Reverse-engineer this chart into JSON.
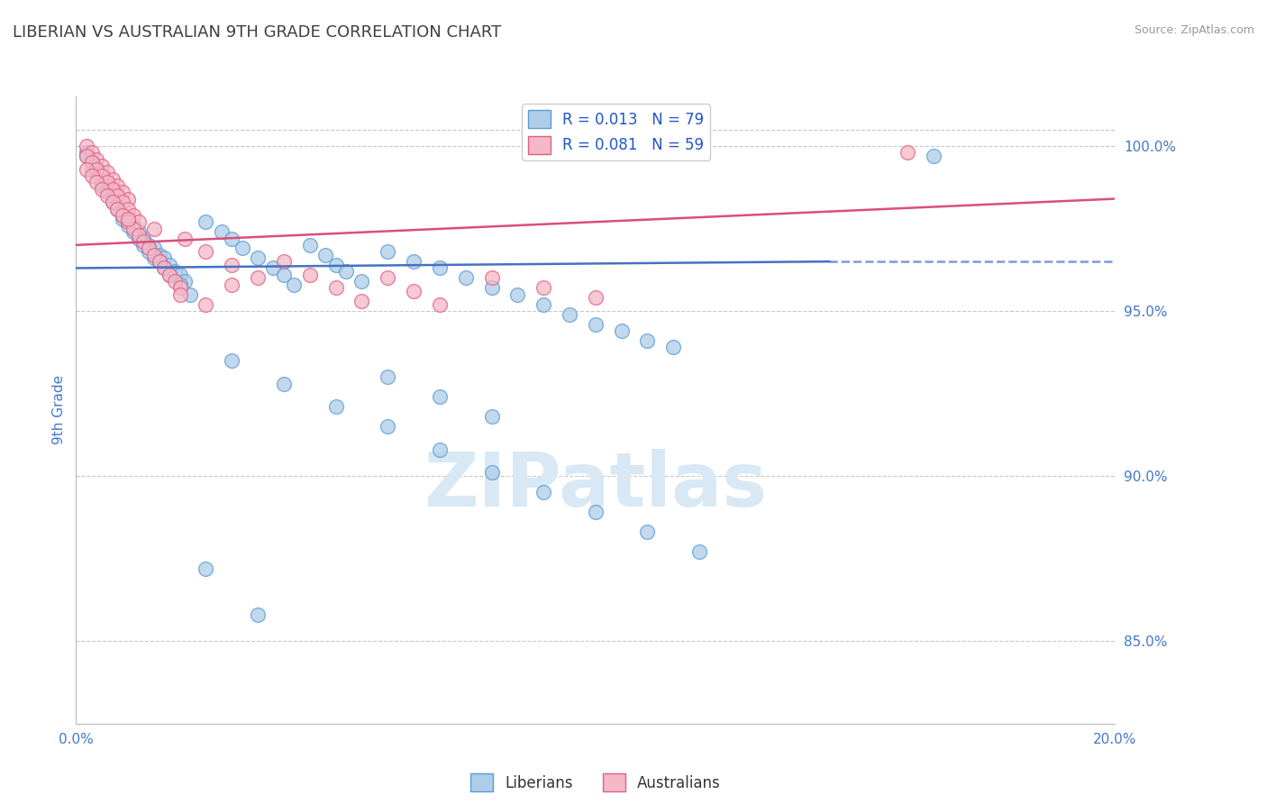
{
  "title": "LIBERIAN VS AUSTRALIAN 9TH GRADE CORRELATION CHART",
  "source": "Source: ZipAtlas.com",
  "ylabel": "9th Grade",
  "xlim": [
    0.0,
    0.2
  ],
  "ylim": [
    0.825,
    1.015
  ],
  "xticks": [
    0.0,
    0.2
  ],
  "xticklabels": [
    "0.0%",
    "20.0%"
  ],
  "yticks": [
    0.85,
    0.9,
    0.95,
    1.0
  ],
  "yticklabels": [
    "85.0%",
    "90.0%",
    "95.0%",
    "100.0%"
  ],
  "blue_color": "#aecde8",
  "blue_edge_color": "#5b9bd5",
  "pink_color": "#f4b8c8",
  "pink_edge_color": "#e06080",
  "blue_line_color": "#4472c4",
  "pink_line_color": "#d94f7a",
  "R_blue": 0.013,
  "N_blue": 79,
  "R_pink": 0.081,
  "N_pink": 59,
  "legend_text_color": "#2255cc",
  "title_color": "#404040",
  "axis_color": "#4477cc",
  "grid_color": "#c8c8c8",
  "watermark": "ZIPatlas",
  "watermark_color": "#d8e8f4",
  "blue_scatter": [
    [
      0.002,
      0.998
    ],
    [
      0.003,
      0.995
    ],
    [
      0.004,
      0.993
    ],
    [
      0.005,
      0.99
    ],
    [
      0.006,
      0.988
    ],
    [
      0.007,
      0.985
    ],
    [
      0.008,
      0.982
    ],
    [
      0.009,
      0.979
    ],
    [
      0.01,
      0.978
    ],
    [
      0.011,
      0.976
    ],
    [
      0.012,
      0.974
    ],
    [
      0.013,
      0.972
    ],
    [
      0.014,
      0.97
    ],
    [
      0.015,
      0.969
    ],
    [
      0.016,
      0.967
    ],
    [
      0.017,
      0.966
    ],
    [
      0.018,
      0.964
    ],
    [
      0.019,
      0.962
    ],
    [
      0.02,
      0.961
    ],
    [
      0.021,
      0.959
    ],
    [
      0.003,
      0.993
    ],
    [
      0.005,
      0.988
    ],
    [
      0.007,
      0.983
    ],
    [
      0.009,
      0.978
    ],
    [
      0.011,
      0.974
    ],
    [
      0.013,
      0.97
    ],
    [
      0.015,
      0.966
    ],
    [
      0.017,
      0.963
    ],
    [
      0.002,
      0.997
    ],
    [
      0.004,
      0.992
    ],
    [
      0.006,
      0.986
    ],
    [
      0.008,
      0.981
    ],
    [
      0.01,
      0.976
    ],
    [
      0.012,
      0.972
    ],
    [
      0.014,
      0.968
    ],
    [
      0.016,
      0.965
    ],
    [
      0.018,
      0.961
    ],
    [
      0.02,
      0.958
    ],
    [
      0.022,
      0.955
    ],
    [
      0.025,
      0.977
    ],
    [
      0.028,
      0.974
    ],
    [
      0.03,
      0.972
    ],
    [
      0.032,
      0.969
    ],
    [
      0.035,
      0.966
    ],
    [
      0.038,
      0.963
    ],
    [
      0.04,
      0.961
    ],
    [
      0.042,
      0.958
    ],
    [
      0.045,
      0.97
    ],
    [
      0.048,
      0.967
    ],
    [
      0.05,
      0.964
    ],
    [
      0.052,
      0.962
    ],
    [
      0.055,
      0.959
    ],
    [
      0.06,
      0.968
    ],
    [
      0.065,
      0.965
    ],
    [
      0.07,
      0.963
    ],
    [
      0.075,
      0.96
    ],
    [
      0.08,
      0.957
    ],
    [
      0.085,
      0.955
    ],
    [
      0.09,
      0.952
    ],
    [
      0.095,
      0.949
    ],
    [
      0.1,
      0.946
    ],
    [
      0.105,
      0.944
    ],
    [
      0.11,
      0.941
    ],
    [
      0.115,
      0.939
    ],
    [
      0.03,
      0.935
    ],
    [
      0.04,
      0.928
    ],
    [
      0.05,
      0.921
    ],
    [
      0.06,
      0.915
    ],
    [
      0.07,
      0.908
    ],
    [
      0.08,
      0.901
    ],
    [
      0.09,
      0.895
    ],
    [
      0.1,
      0.889
    ],
    [
      0.11,
      0.883
    ],
    [
      0.12,
      0.877
    ],
    [
      0.06,
      0.93
    ],
    [
      0.07,
      0.924
    ],
    [
      0.08,
      0.918
    ],
    [
      0.025,
      0.872
    ],
    [
      0.035,
      0.858
    ],
    [
      0.165,
      0.997
    ]
  ],
  "pink_scatter": [
    [
      0.002,
      1.0
    ],
    [
      0.003,
      0.998
    ],
    [
      0.004,
      0.996
    ],
    [
      0.005,
      0.994
    ],
    [
      0.006,
      0.992
    ],
    [
      0.007,
      0.99
    ],
    [
      0.008,
      0.988
    ],
    [
      0.009,
      0.986
    ],
    [
      0.01,
      0.984
    ],
    [
      0.002,
      0.997
    ],
    [
      0.003,
      0.995
    ],
    [
      0.004,
      0.993
    ],
    [
      0.005,
      0.991
    ],
    [
      0.006,
      0.989
    ],
    [
      0.007,
      0.987
    ],
    [
      0.008,
      0.985
    ],
    [
      0.009,
      0.983
    ],
    [
      0.01,
      0.981
    ],
    [
      0.011,
      0.979
    ],
    [
      0.012,
      0.977
    ],
    [
      0.002,
      0.993
    ],
    [
      0.003,
      0.991
    ],
    [
      0.004,
      0.989
    ],
    [
      0.005,
      0.987
    ],
    [
      0.006,
      0.985
    ],
    [
      0.007,
      0.983
    ],
    [
      0.008,
      0.981
    ],
    [
      0.009,
      0.979
    ],
    [
      0.01,
      0.977
    ],
    [
      0.011,
      0.975
    ],
    [
      0.012,
      0.973
    ],
    [
      0.013,
      0.971
    ],
    [
      0.014,
      0.969
    ],
    [
      0.015,
      0.967
    ],
    [
      0.016,
      0.965
    ],
    [
      0.017,
      0.963
    ],
    [
      0.018,
      0.961
    ],
    [
      0.019,
      0.959
    ],
    [
      0.02,
      0.957
    ],
    [
      0.021,
      0.972
    ],
    [
      0.025,
      0.968
    ],
    [
      0.03,
      0.964
    ],
    [
      0.035,
      0.96
    ],
    [
      0.04,
      0.965
    ],
    [
      0.045,
      0.961
    ],
    [
      0.05,
      0.957
    ],
    [
      0.055,
      0.953
    ],
    [
      0.06,
      0.96
    ],
    [
      0.065,
      0.956
    ],
    [
      0.07,
      0.952
    ],
    [
      0.08,
      0.96
    ],
    [
      0.09,
      0.957
    ],
    [
      0.1,
      0.954
    ],
    [
      0.02,
      0.955
    ],
    [
      0.025,
      0.952
    ],
    [
      0.03,
      0.958
    ],
    [
      0.01,
      0.978
    ],
    [
      0.015,
      0.975
    ],
    [
      0.16,
      0.998
    ]
  ]
}
